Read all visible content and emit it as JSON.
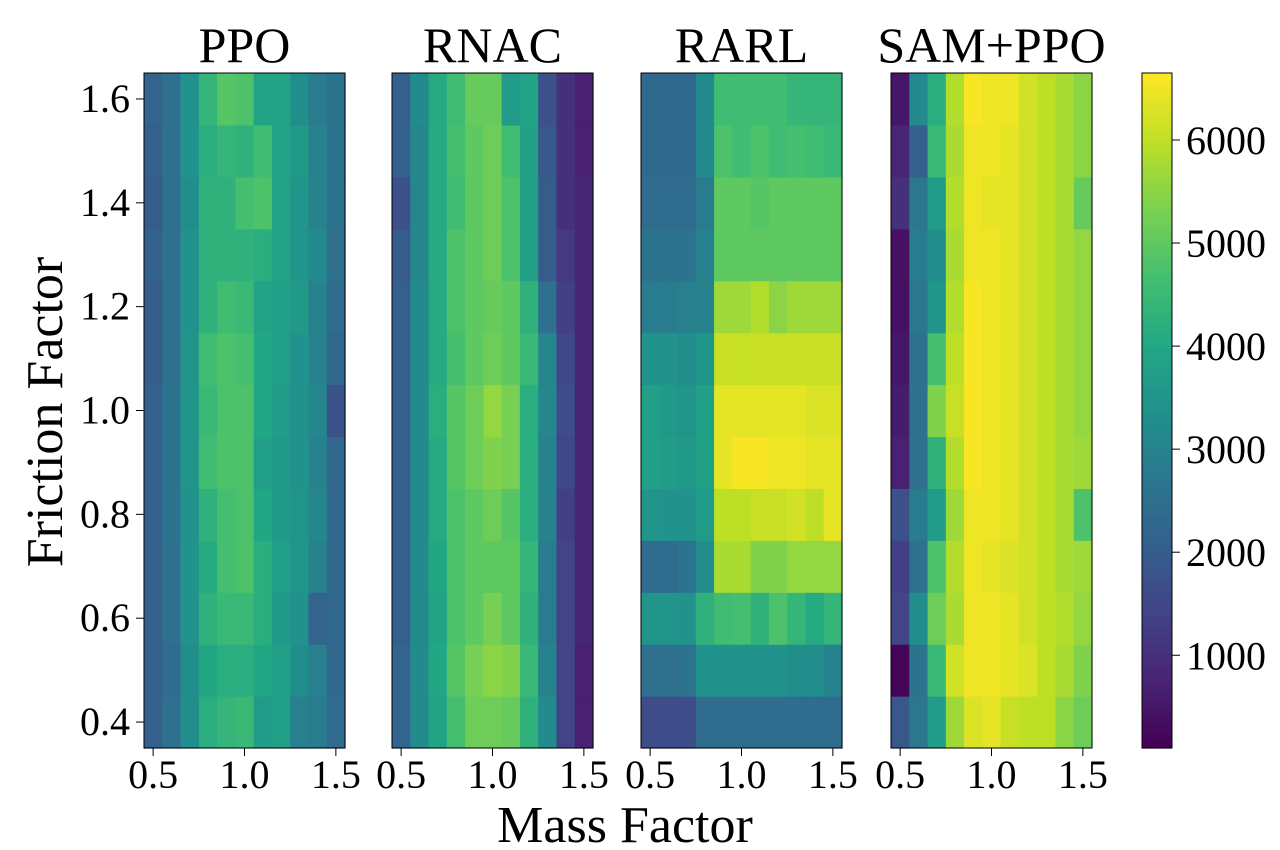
{
  "chart_data": {
    "type": "heatmap",
    "xlabel": "Mass Factor",
    "ylabel": "Friction Factor",
    "colormap": "viridis",
    "x_range": [
      0.45,
      1.55
    ],
    "y_range": [
      0.35,
      1.65
    ],
    "x_ticks": [
      0.5,
      1.0,
      1.5
    ],
    "x_tick_labels": [
      "0.5",
      "1.0",
      "1.5"
    ],
    "y_ticks": [
      0.4,
      0.6,
      0.8,
      1.0,
      1.2,
      1.4,
      1.6
    ],
    "y_tick_labels": [
      "0.4",
      "0.6",
      "0.8",
      "1.0",
      "1.2",
      "1.4",
      "1.6"
    ],
    "x_values": [
      0.5,
      0.6,
      0.7,
      0.8,
      0.9,
      1.0,
      1.1,
      1.2,
      1.3,
      1.4,
      1.5
    ],
    "y_values": [
      0.4,
      0.5,
      0.6,
      0.7,
      0.8,
      0.9,
      1.0,
      1.1,
      1.2,
      1.3,
      1.4,
      1.5,
      1.6
    ],
    "colorbar": {
      "range": [
        100,
        6650
      ],
      "ticks": [
        1000,
        2000,
        3000,
        4000,
        5000,
        6000
      ],
      "tick_labels": [
        "1000",
        "2000",
        "3000",
        "4000",
        "5000",
        "6000"
      ]
    },
    "panels": [
      {
        "title": "PPO",
        "z_note": "rows ordered from friction 0.4 (bottom) to 1.6 (top); columns mass 0.5 to 1.5",
        "z": [
          [
            2100,
            2500,
            3300,
            4200,
            4400,
            4500,
            3700,
            3800,
            2900,
            2800,
            2400
          ],
          [
            2100,
            2400,
            3300,
            4000,
            4200,
            4200,
            4000,
            3800,
            3300,
            2900,
            2300
          ],
          [
            2100,
            2500,
            3400,
            4300,
            4500,
            4500,
            4200,
            3600,
            3400,
            2200,
            2300
          ],
          [
            2100,
            2500,
            3400,
            4100,
            4700,
            4800,
            4200,
            3800,
            3500,
            3000,
            2300
          ],
          [
            2100,
            2600,
            3400,
            4300,
            4700,
            4800,
            4000,
            3600,
            3500,
            3100,
            2300
          ],
          [
            2100,
            2600,
            3500,
            4600,
            4800,
            4800,
            3800,
            3600,
            3400,
            3000,
            2300
          ],
          [
            2100,
            2600,
            3500,
            4500,
            4800,
            4800,
            4000,
            3700,
            3400,
            3100,
            1800
          ],
          [
            2000,
            2500,
            3500,
            4600,
            4800,
            4700,
            4000,
            3800,
            3400,
            3000,
            2300
          ],
          [
            2000,
            2500,
            3400,
            4300,
            4600,
            4500,
            3900,
            3800,
            3600,
            3000,
            2400
          ],
          [
            2100,
            2500,
            3400,
            4300,
            4300,
            4300,
            4200,
            3900,
            3500,
            3200,
            2500
          ],
          [
            2000,
            2500,
            3300,
            4300,
            4300,
            4700,
            4800,
            3900,
            3500,
            3000,
            2600
          ],
          [
            2100,
            2500,
            3400,
            4200,
            4400,
            4300,
            4600,
            3900,
            3600,
            3000,
            2600
          ],
          [
            2200,
            2500,
            3400,
            4400,
            4900,
            4800,
            3900,
            3900,
            3300,
            2800,
            2600
          ]
        ]
      },
      {
        "title": "RNAC",
        "z": [
          [
            2200,
            3200,
            3900,
            4700,
            5200,
            5200,
            5100,
            4300,
            3200,
            1400,
            700
          ],
          [
            2200,
            3200,
            4000,
            4900,
            5300,
            5500,
            5400,
            4500,
            3000,
            1400,
            700
          ],
          [
            2100,
            3200,
            3900,
            4800,
            5000,
            5300,
            5000,
            4300,
            2800,
            1400,
            800
          ],
          [
            2100,
            3200,
            4000,
            4800,
            5000,
            5000,
            5000,
            4400,
            2800,
            1400,
            800
          ],
          [
            2100,
            3200,
            4100,
            4800,
            5000,
            5200,
            4900,
            4200,
            3000,
            1300,
            800
          ],
          [
            2100,
            3200,
            4100,
            4900,
            5200,
            5400,
            5300,
            4200,
            3000,
            1500,
            800
          ],
          [
            2100,
            3200,
            4200,
            4900,
            5200,
            5600,
            5300,
            4200,
            3100,
            1600,
            800
          ],
          [
            2100,
            3200,
            4100,
            4700,
            5000,
            5200,
            5000,
            4500,
            3100,
            1500,
            800
          ],
          [
            2100,
            3200,
            4100,
            4800,
            5000,
            5100,
            5000,
            4300,
            2500,
            1300,
            800
          ],
          [
            2000,
            3100,
            4100,
            4800,
            5000,
            5200,
            4800,
            3800,
            2000,
            1200,
            800
          ],
          [
            1700,
            3100,
            4100,
            4600,
            5000,
            5200,
            4800,
            3800,
            2000,
            1000,
            800
          ],
          [
            2100,
            3100,
            4100,
            4700,
            5000,
            5200,
            4600,
            3800,
            1900,
            1000,
            700
          ],
          [
            2100,
            3200,
            4100,
            4600,
            5100,
            5100,
            3700,
            3900,
            1700,
            1000,
            700
          ]
        ]
      },
      {
        "title": "RARL",
        "z": [
          [
            1600,
            1600,
            1600,
            2400,
            2400,
            2400,
            2400,
            2400,
            2400,
            2400,
            2400
          ],
          [
            2500,
            2500,
            2600,
            3400,
            3400,
            3400,
            3400,
            3400,
            3300,
            3300,
            3000
          ],
          [
            3500,
            3500,
            3400,
            4300,
            4600,
            4700,
            4300,
            4800,
            4400,
            4100,
            4400
          ],
          [
            2400,
            2400,
            2600,
            3300,
            5800,
            5800,
            5400,
            5400,
            5600,
            5600,
            5600
          ],
          [
            3500,
            3400,
            3400,
            3700,
            6000,
            6000,
            6100,
            6100,
            6200,
            6000,
            6400
          ],
          [
            3800,
            3700,
            3600,
            3800,
            6400,
            6600,
            6600,
            6500,
            6500,
            6400,
            6400
          ],
          [
            3800,
            3600,
            3500,
            3800,
            6400,
            6400,
            6400,
            6400,
            6400,
            6300,
            6300
          ],
          [
            3400,
            3400,
            3300,
            3500,
            6100,
            6100,
            6100,
            6100,
            6100,
            6100,
            6100
          ],
          [
            2800,
            2800,
            2900,
            3000,
            5700,
            5700,
            5900,
            5500,
            5700,
            5700,
            5700
          ],
          [
            2600,
            2600,
            2600,
            3000,
            5000,
            5000,
            5000,
            5000,
            5000,
            5000,
            5000
          ],
          [
            2400,
            2400,
            2400,
            2800,
            5000,
            5000,
            4900,
            5000,
            5000,
            5000,
            5000
          ],
          [
            2300,
            2300,
            2300,
            3200,
            4800,
            4600,
            4800,
            4600,
            4700,
            4600,
            4500
          ],
          [
            2300,
            2300,
            2300,
            3200,
            4600,
            4600,
            4600,
            4600,
            4400,
            4400,
            4400
          ]
        ]
      },
      {
        "title": "SAM+PPO",
        "z": [
          [
            1900,
            2700,
            3700,
            5700,
            6300,
            6400,
            6100,
            6000,
            6000,
            5500,
            5200
          ],
          [
            200,
            2600,
            4500,
            6200,
            6500,
            6500,
            6400,
            6300,
            6000,
            5800,
            5400
          ],
          [
            1400,
            3300,
            5200,
            5800,
            6500,
            6500,
            6400,
            6200,
            6000,
            5900,
            5600
          ],
          [
            1300,
            2500,
            4800,
            5900,
            6500,
            6400,
            6300,
            6200,
            6000,
            5800,
            5700
          ],
          [
            1700,
            2800,
            3700,
            5700,
            6500,
            6500,
            6400,
            6200,
            6000,
            5800,
            4800
          ],
          [
            700,
            2500,
            4300,
            5900,
            6600,
            6500,
            6400,
            6200,
            6000,
            5800,
            5700
          ],
          [
            600,
            2500,
            5400,
            6100,
            6600,
            6500,
            6400,
            6200,
            6000,
            5800,
            5600
          ],
          [
            500,
            2500,
            4700,
            6000,
            6600,
            6500,
            6400,
            6200,
            6000,
            5800,
            5600
          ],
          [
            400,
            2700,
            3500,
            5900,
            6600,
            6500,
            6400,
            6200,
            6000,
            5800,
            5600
          ],
          [
            400,
            2800,
            3300,
            5800,
            6500,
            6500,
            6400,
            6200,
            6000,
            5800,
            5600
          ],
          [
            1000,
            2700,
            3700,
            5900,
            6500,
            6400,
            6400,
            6200,
            6000,
            5800,
            5100
          ],
          [
            800,
            2100,
            4500,
            5800,
            6500,
            6500,
            6400,
            6200,
            6000,
            5800,
            5500
          ],
          [
            500,
            3200,
            4200,
            5900,
            6600,
            6500,
            6500,
            6200,
            6000,
            5800,
            5500
          ]
        ]
      }
    ]
  }
}
